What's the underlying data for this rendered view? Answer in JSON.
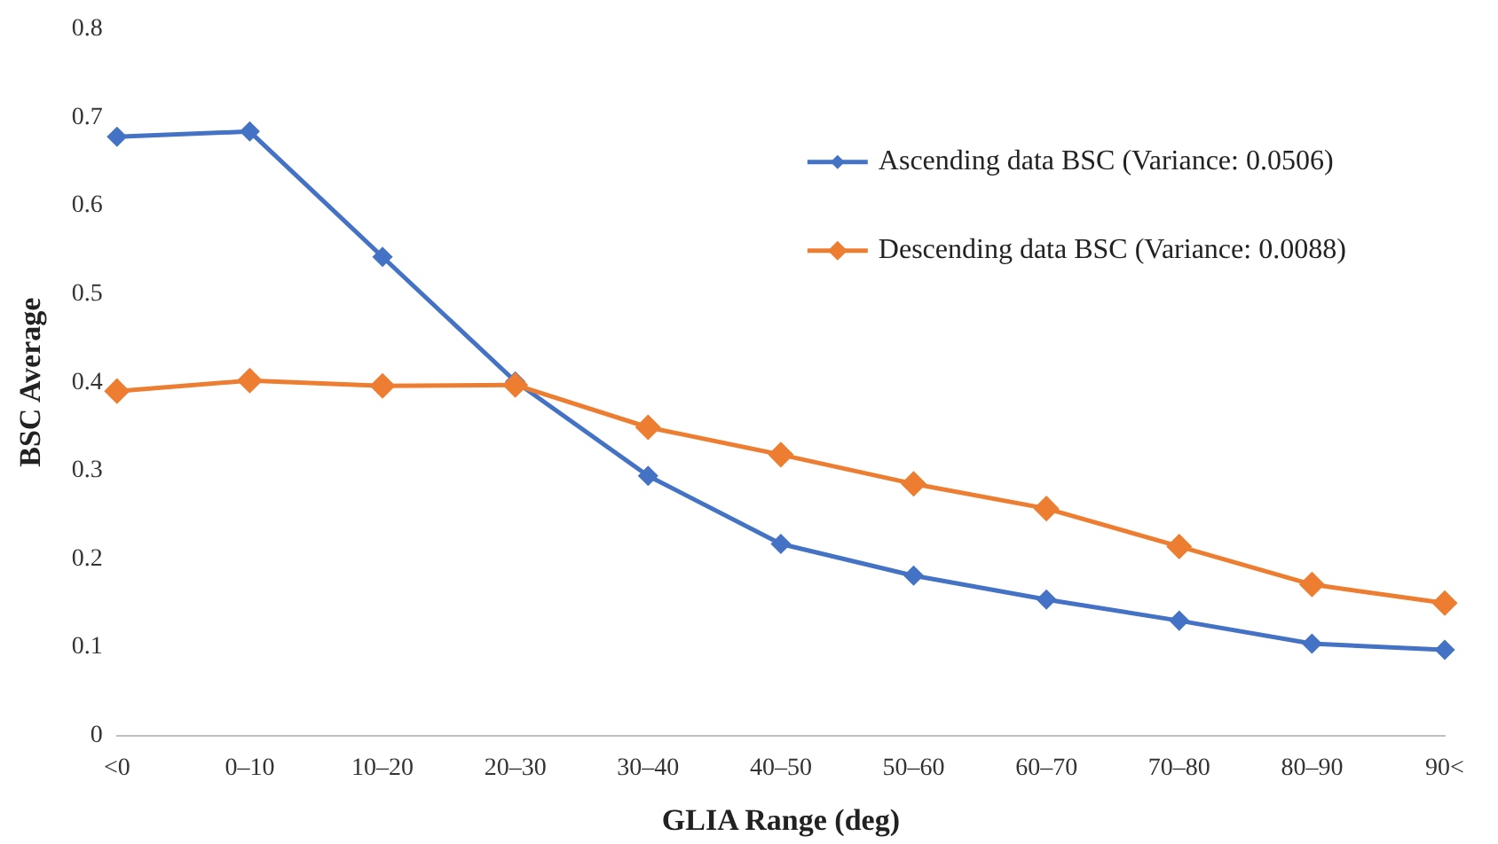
{
  "chart_data": {
    "type": "line",
    "xlabel": "GLIA Range (deg)",
    "ylabel": "BSC Average",
    "categories": [
      "<0",
      "0–10",
      "10–20",
      "20–30",
      "30–40",
      "40–50",
      "50–60",
      "60–70",
      "70–80",
      "80–90",
      "90<"
    ],
    "series": [
      {
        "name": "Ascending data BSC (Variance: 0.0506)",
        "color": "#4472c4",
        "values": [
          0.678,
          0.684,
          0.542,
          0.401,
          0.294,
          0.217,
          0.181,
          0.154,
          0.13,
          0.104,
          0.097
        ]
      },
      {
        "name": "Descending data BSC (Variance: 0.0088)",
        "color": "#ed7d31",
        "values": [
          0.39,
          0.402,
          0.396,
          0.397,
          0.349,
          0.318,
          0.285,
          0.257,
          0.214,
          0.171,
          0.15
        ]
      }
    ],
    "ylim": [
      0,
      0.8
    ],
    "yticks": [
      0,
      0.1,
      0.2,
      0.3,
      0.4,
      0.5,
      0.6,
      0.7,
      0.8
    ],
    "grid": false,
    "legend": "top right",
    "marker": "diamond",
    "line_style": "solid"
  }
}
